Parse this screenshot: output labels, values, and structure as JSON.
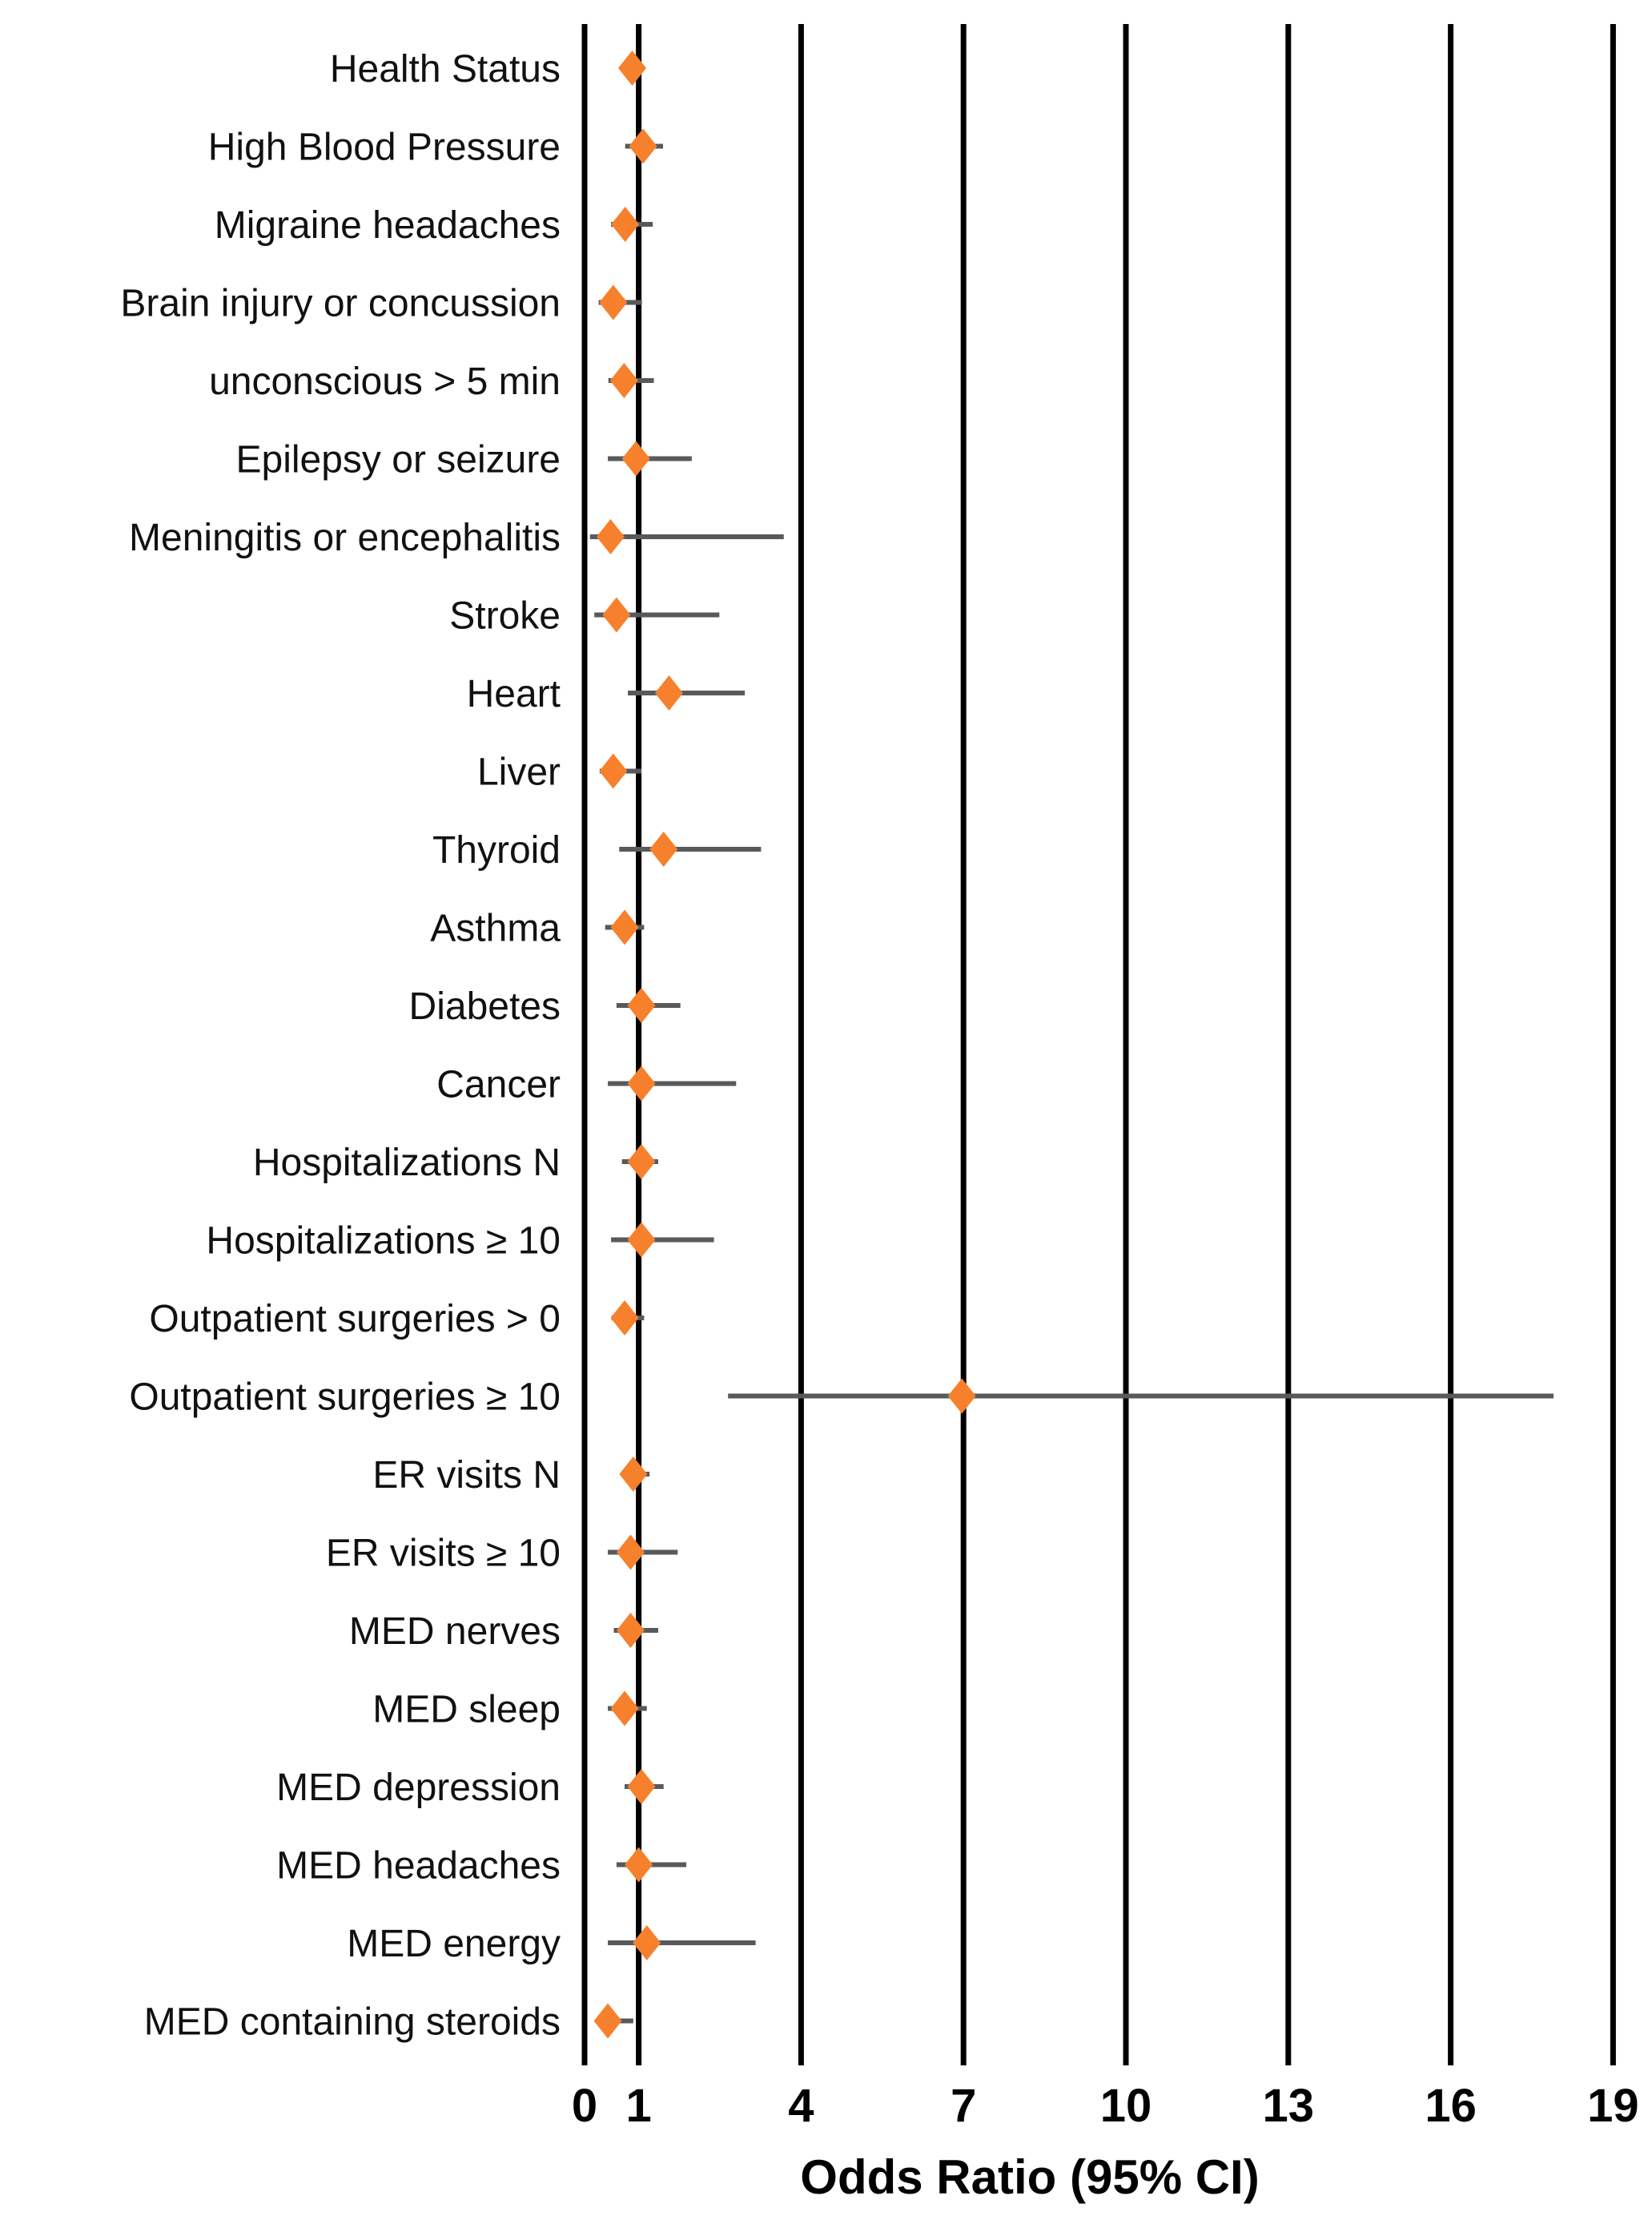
{
  "figure": {
    "background_color": "#ffffff",
    "axis_color": "#000000",
    "ci_line_color": "#58595B",
    "marker_color": "#F6802B"
  },
  "chart_data": {
    "type": "scatter",
    "subtype": "forest-plot",
    "title": "",
    "xlabel": "Odds Ratio (95% CI)",
    "ylabel": "",
    "x_ticks": [
      0,
      1,
      4,
      7,
      10,
      13,
      16,
      19
    ],
    "xlim": [
      0,
      19.6
    ],
    "grid": "vertical lines at each x tick, full height",
    "legend_position": "none",
    "marker_shape": "diamond",
    "rows": [
      {
        "label": "Health Status",
        "or": 0.88,
        "ci": [
          0.78,
          1.0
        ]
      },
      {
        "label": "High Blood Pressure",
        "or": 1.08,
        "ci": [
          0.75,
          1.45
        ]
      },
      {
        "label": "Migraine headaches",
        "or": 0.75,
        "ci": [
          0.49,
          1.26
        ]
      },
      {
        "label": "Brain injury or concussion",
        "or": 0.53,
        "ci": [
          0.26,
          1.06
        ]
      },
      {
        "label": "unconscious > 5 min",
        "or": 0.73,
        "ci": [
          0.44,
          1.28
        ]
      },
      {
        "label": "Epilepsy or seizure",
        "or": 0.95,
        "ci": [
          0.43,
          1.98
        ]
      },
      {
        "label": "Meningitis or encephalitis",
        "or": 0.48,
        "ci": [
          0.1,
          3.68
        ]
      },
      {
        "label": "Stroke",
        "or": 0.59,
        "ci": [
          0.18,
          2.49
        ]
      },
      {
        "label": "Heart",
        "or": 1.56,
        "ci": [
          0.8,
          2.96
        ]
      },
      {
        "label": "Liver",
        "or": 0.53,
        "ci": [
          0.28,
          1.05
        ]
      },
      {
        "label": "Thyroid",
        "or": 1.46,
        "ci": [
          0.64,
          3.26
        ]
      },
      {
        "label": "Asthma",
        "or": 0.74,
        "ci": [
          0.38,
          1.1
        ]
      },
      {
        "label": "Diabetes",
        "or": 1.05,
        "ci": [
          0.59,
          1.77
        ]
      },
      {
        "label": "Cancer",
        "or": 1.05,
        "ci": [
          0.43,
          2.8
        ]
      },
      {
        "label": "Hospitalizations N",
        "or": 1.05,
        "ci": [
          0.69,
          1.36
        ]
      },
      {
        "label": "Hospitalizations ≥ 10",
        "or": 1.05,
        "ci": [
          0.49,
          2.39
        ]
      },
      {
        "label": "Outpatient surgeries > 0",
        "or": 0.74,
        "ci": [
          0.5,
          1.1
        ]
      },
      {
        "label": "Outpatient surgeries ≥ 10",
        "or": 6.97,
        "ci": [
          2.65,
          17.9
        ]
      },
      {
        "label": "ER visits N",
        "or": 0.9,
        "ci": [
          0.7,
          1.2
        ]
      },
      {
        "label": "ER visits ≥ 10",
        "or": 0.85,
        "ci": [
          0.43,
          1.72
        ]
      },
      {
        "label": "MED nerves",
        "or": 0.85,
        "ci": [
          0.54,
          1.36
        ]
      },
      {
        "label": "MED sleep",
        "or": 0.74,
        "ci": [
          0.43,
          1.15
        ]
      },
      {
        "label": "MED depression",
        "or": 1.05,
        "ci": [
          0.74,
          1.46
        ]
      },
      {
        "label": "MED headaches",
        "or": 1.0,
        "ci": [
          0.59,
          1.88
        ]
      },
      {
        "label": "MED energy",
        "or": 1.15,
        "ci": [
          0.43,
          3.16
        ]
      },
      {
        "label": "MED containing steroids",
        "or": 0.43,
        "ci": [
          0.23,
          0.9
        ]
      }
    ]
  }
}
